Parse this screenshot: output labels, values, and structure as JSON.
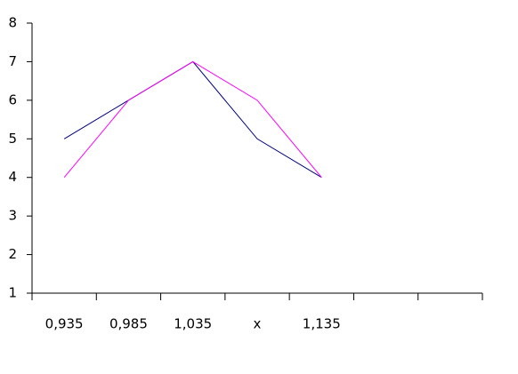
{
  "chart_data": {
    "type": "line",
    "categories": [
      "0,935",
      "0,985",
      "1,035",
      "x",
      "1,135",
      null,
      null
    ],
    "series": [
      {
        "color": "#000080",
        "values": [
          5,
          6,
          7,
          5,
          4,
          null,
          null
        ]
      },
      {
        "color": "#ff00ff",
        "values": [
          4,
          6,
          7,
          6,
          4,
          null,
          null
        ]
      }
    ],
    "ylim": [
      1,
      8
    ],
    "yticks": [
      1,
      2,
      3,
      4,
      5,
      6,
      7,
      8
    ]
  }
}
